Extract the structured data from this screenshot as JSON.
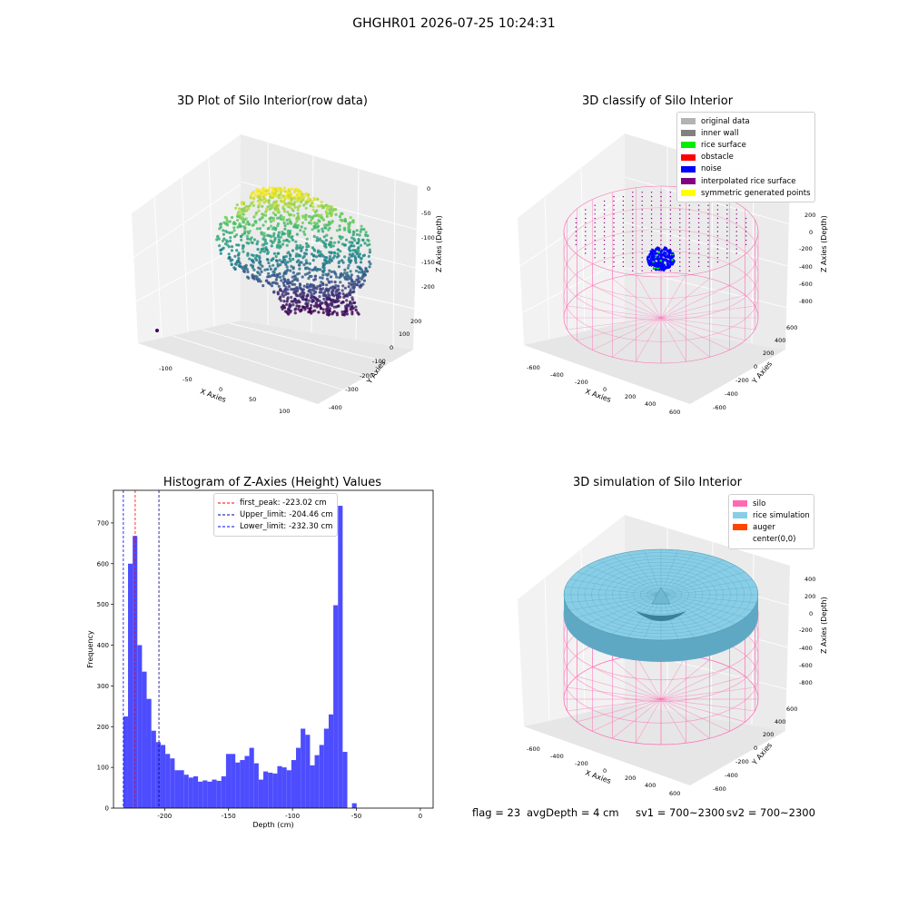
{
  "figure": {
    "title": "GHGHR01 2026-07-25 10:24:31"
  },
  "status": {
    "flag": "flag = 23",
    "avg_depth": "avgDepth = 4 cm",
    "sv1": "sv1 = 700~2300",
    "sv2": "sv2 = 700~2300"
  },
  "chart_data": [
    {
      "type": "scatter",
      "title": "3D Plot of Silo Interior(row data)",
      "xlabel": "X Axies",
      "ylabel": "Y Axies",
      "zlabel": "Z Axies (Depth)",
      "x_ticks": [
        "-100",
        "-50",
        "0",
        "50",
        "100"
      ],
      "y_ticks": [
        "-400",
        "-300",
        "-200",
        "-100",
        "0",
        "100",
        "200"
      ],
      "z_ticks": [
        "-200",
        "-150",
        "-100",
        "-50",
        "0"
      ],
      "colormap": "viridis",
      "grid": true
    },
    {
      "type": "scatter",
      "title": "3D classify of Silo Interior",
      "xlabel": "X Axies",
      "ylabel": "Y Axies",
      "zlabel": "Z Axies (Depth)",
      "x_ticks": [
        "-600",
        "-400",
        "-200",
        "0",
        "200",
        "400",
        "600"
      ],
      "y_ticks": [
        "-600",
        "-400",
        "-200",
        "0",
        "200",
        "400",
        "600"
      ],
      "z_ticks": [
        "-800",
        "-600",
        "-400",
        "-200",
        "0",
        "200"
      ],
      "legend": [
        {
          "label": "original data",
          "color": "#b3b3b3"
        },
        {
          "label": "inner wall",
          "color": "#808080"
        },
        {
          "label": "rice surface",
          "color": "#00ee00"
        },
        {
          "label": "obstacle",
          "color": "#ff0000"
        },
        {
          "label": "noise",
          "color": "#0000ff"
        },
        {
          "label": "interpolated rice surface",
          "color": "#800080"
        },
        {
          "label": "symmetric generated points",
          "color": "#ffff00"
        }
      ],
      "legend_placement": "upper-right",
      "wire_color": "#ff69b4",
      "grid": true
    },
    {
      "type": "bar",
      "title": "Histogram of Z-Axies (Height) Values",
      "xlabel": "Depth (cm)",
      "ylabel": "Frequency",
      "xlim": [
        -240,
        10
      ],
      "ylim": [
        0,
        780
      ],
      "x_ticks": [
        -200,
        -150,
        -100,
        -50,
        0
      ],
      "y_ticks": [
        0,
        100,
        200,
        300,
        400,
        500,
        600,
        700
      ],
      "bin_width": 3.65,
      "bins_start": -232.3,
      "bar_color": "#4d4dff",
      "values": [
        225,
        600,
        668,
        400,
        335,
        268,
        190,
        162,
        155,
        133,
        122,
        93,
        93,
        82,
        75,
        78,
        65,
        68,
        65,
        70,
        67,
        78,
        133,
        133,
        112,
        118,
        128,
        148,
        110,
        70,
        90,
        87,
        85,
        103,
        100,
        93,
        118,
        148,
        195,
        180,
        105,
        130,
        155,
        195,
        230,
        498,
        742,
        138,
        0,
        12
      ],
      "vlines": [
        {
          "label": "first_peak: -223.02 cm",
          "x": -223.02,
          "color": "#ff0000"
        },
        {
          "label": "Upper_limit: -204.46 cm",
          "x": -204.46,
          "color": "#00008b"
        },
        {
          "label": "Lower_limit: -232.30 cm",
          "x": -232.3,
          "color": "#0000ff"
        }
      ],
      "legend_placement": "upper-center"
    },
    {
      "type": "area",
      "title": "3D simulation of Silo Interior",
      "xlabel": "X Axies",
      "ylabel": "Y Axies",
      "zlabel": "Z Axies (Depth)",
      "x_ticks": [
        "-600",
        "-400",
        "-200",
        "0",
        "200",
        "400",
        "600"
      ],
      "y_ticks": [
        "-600",
        "-400",
        "-200",
        "0",
        "200",
        "400",
        "600"
      ],
      "z_ticks": [
        "-800",
        "-600",
        "-400",
        "-200",
        "0",
        "200",
        "400"
      ],
      "legend": [
        {
          "label": "silo",
          "color": "#ff69b4"
        },
        {
          "label": "rice simulation",
          "color": "#87cee6"
        },
        {
          "label": "auger",
          "color": "#ff4500"
        },
        {
          "label": "center(0,0)",
          "color": "#ffffff"
        }
      ],
      "legend_placement": "upper-right",
      "grid": true
    }
  ]
}
